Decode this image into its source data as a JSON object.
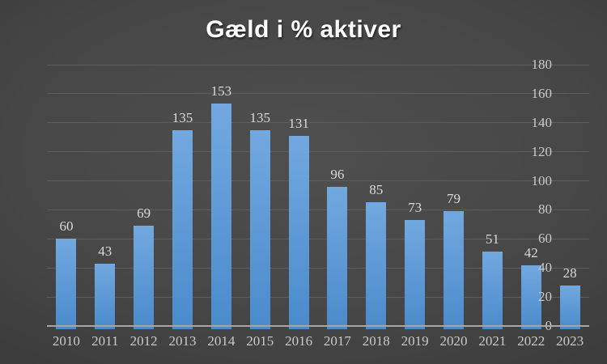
{
  "title": "Gæld i % aktiver",
  "chart_data": {
    "type": "bar",
    "title": "Gæld i % aktiver",
    "categories": [
      "2010",
      "2011",
      "2012",
      "2013",
      "2014",
      "2015",
      "2016",
      "2017",
      "2018",
      "2019",
      "2020",
      "2021",
      "2022",
      "2023"
    ],
    "values": [
      60,
      43,
      69,
      135,
      153,
      135,
      131,
      96,
      85,
      73,
      79,
      51,
      42,
      28
    ],
    "xlabel": "",
    "ylabel": "",
    "ylim": [
      0,
      180
    ],
    "ytick_step": 20,
    "grid": true,
    "legend": false,
    "data_labels": true,
    "colors": {
      "bar_top": "#72A8DF",
      "bar_bottom": "#4A8BCB",
      "data_label": "#D9D9D9",
      "tick_label": "#C9C9C9",
      "gridline": "#5C5C5C",
      "axis_line": "#A6A6A6",
      "title": "#FFFFFF",
      "background_center": "#4F4F4F",
      "background_edge": "#1F1F1F"
    }
  }
}
